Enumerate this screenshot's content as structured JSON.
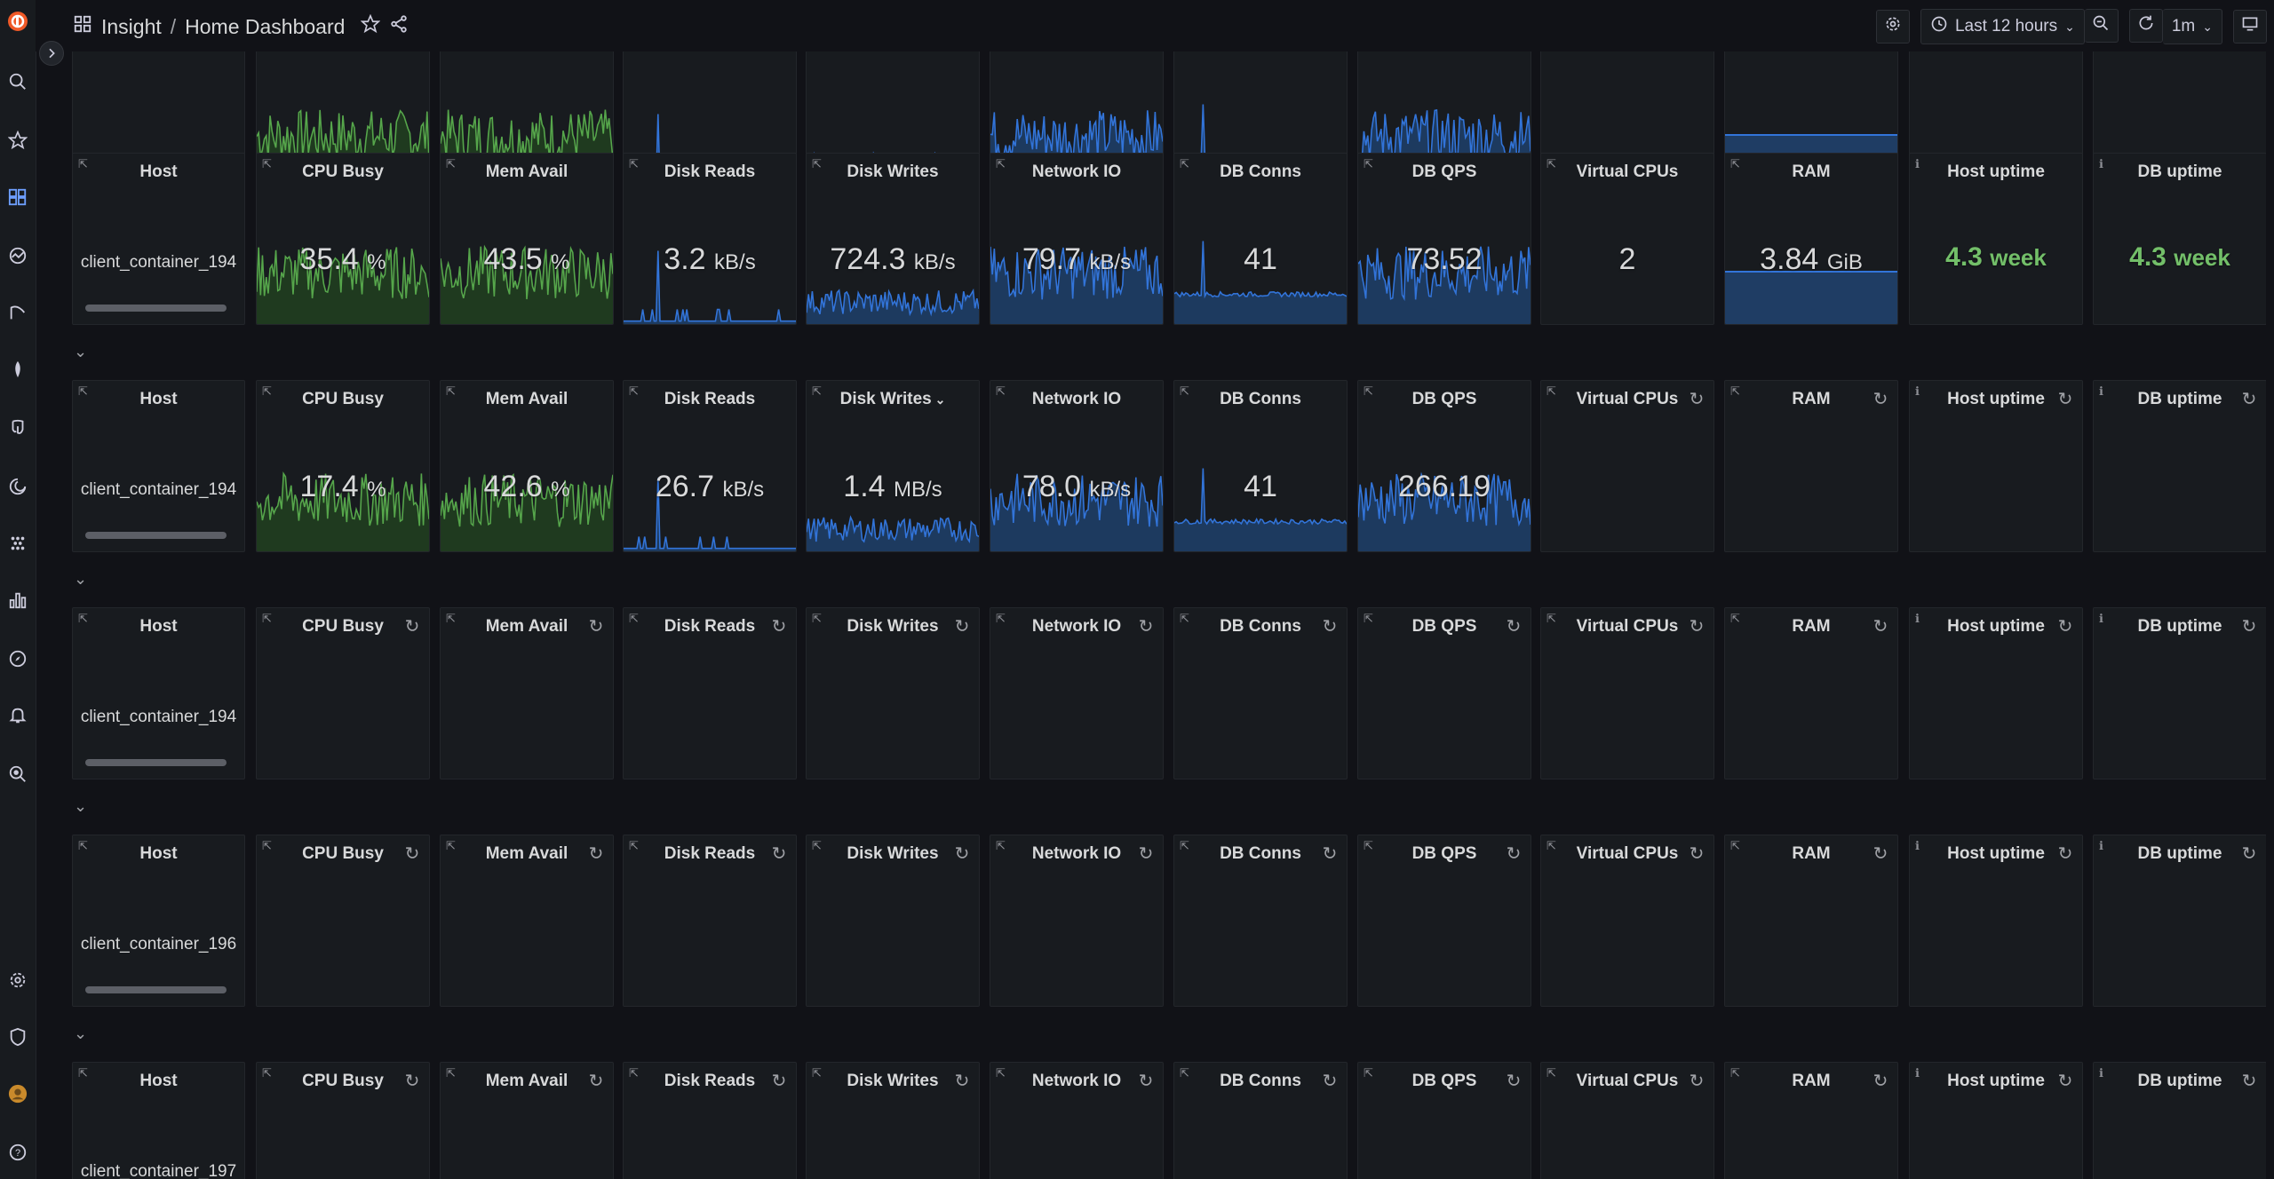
{
  "app": {
    "crumb_root": "Insight",
    "crumb_sep": "/",
    "crumb_page": "Home Dashboard"
  },
  "toolbar": {
    "time_range": "Last 12 hours",
    "refresh_interval": "1m"
  },
  "panels": {
    "host": "Host",
    "cpu": "CPU Busy",
    "mem": "Mem Avail",
    "disk_reads": "Disk Reads",
    "disk_writes": "Disk Writes",
    "network": "Network IO",
    "db_conns": "DB Conns",
    "db_qps": "DB QPS",
    "vcpus": "Virtual CPUs",
    "ram": "RAM",
    "host_uptime": "Host uptime",
    "db_uptime": "DB uptime"
  },
  "rows": [
    {
      "host": "client_container_194",
      "cpu": {
        "value": "35.4",
        "unit": "%"
      },
      "mem": {
        "value": "43.5",
        "unit": "%"
      },
      "disk_reads": {
        "value": "3.2",
        "unit": "kB/s"
      },
      "disk_writes": {
        "value": "724.3",
        "unit": "kB/s"
      },
      "network": {
        "value": "79.7",
        "unit": "kB/s"
      },
      "db_conns": {
        "value": "41"
      },
      "db_qps": {
        "value": "73.52"
      },
      "vcpus": {
        "value": "2"
      },
      "ram": {
        "value": "3.84",
        "unit": "GiB"
      },
      "host_uptime": {
        "value": "4.3",
        "unit": "week"
      },
      "db_uptime": {
        "value": "4.3",
        "unit": "week"
      }
    },
    {
      "host": "client_container_194",
      "cpu": {
        "value": "17.4",
        "unit": "%"
      },
      "mem": {
        "value": "42.6",
        "unit": "%"
      },
      "disk_reads": {
        "value": "26.7",
        "unit": "kB/s"
      },
      "disk_writes": {
        "value": "1.4",
        "unit": "MB/s"
      },
      "network": {
        "value": "78.0",
        "unit": "kB/s"
      },
      "db_conns": {
        "value": "41"
      },
      "db_qps": {
        "value": "266.19"
      }
    },
    {
      "host": "client_container_194"
    },
    {
      "host": "client_container_196"
    },
    {
      "host": "client_container_197"
    }
  ],
  "colors": {
    "green_fill": "#1f3a1f",
    "green_line": "#56a64b",
    "blue_fill": "#1d3a5f",
    "blue_line": "#3274d9",
    "uptime_green": "#73bf69"
  }
}
